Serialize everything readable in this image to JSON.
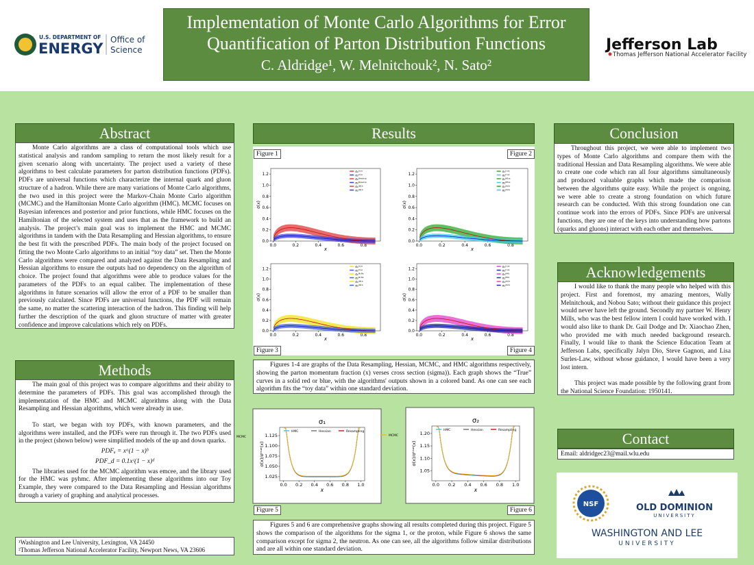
{
  "header": {
    "title": "Implementation of Monte Carlo Algorithms for Error Quantification of Parton Distribution Functions",
    "authors": "C. Aldridge¹, W. Melnitchouk², N. Sato²"
  },
  "logos": {
    "doe_line1": "U.S. DEPARTMENT OF",
    "doe_line2": "ENERGY",
    "office_line1": "Office of",
    "office_line2": "Science",
    "jlab": "Jefferson Lab",
    "jlab_sub": "Thomas Jefferson National Accelerator Facility"
  },
  "abstract": {
    "heading": "Abstract",
    "text": "Monte Carlo algorithms are a class of computational tools which use statistical analysis and random sampling to return the most likely result for a given scenario along with uncertainty. The project used a variety of these algorithms to best calculate parameters for parton distribution functions (PDFs). PDFs are universal functions which characterize the internal quark and gluon structure of a hadron. While there are many variations of Monte Carlo algorithms, the two used in this project were the Markov-Chain Monte Carlo algorithm (MCMC) and the Hamiltonian Monte Carlo algorithm (HMC). MCMC focuses on Bayesian inferences and posterior and prior functions, while HMC focuses on the Hamiltonian of the selected system and uses that as the framework to build an analysis. The project’s main goal was to implement the HMC and MCMC algorithms in tandem with the Data Resampling and Hessian algorithms, to ensure the best fit with the prescribed PDFs. The main body of the project focused on fitting the two Monte Carlo algorithms to an initial “toy data” set. Then the Monte Carlo algorithms were compared and analyzed against the Data Resampling and Hessian algorithms to ensure the outputs had no dependency on the algorithm of choice. The project found that algorithms were able to produce values for the parameters of the PDFs to an equal caliber. The implementation of these algorithms in future scenarios will allow the error of a PDF to be smaller than previously calculated. Since PDFs are universal functions, the PDF will remain the same, no matter the scattering interaction of the hadron. This finding will help further the description of the quark and gluon structure of matter with greater confidence and improve calculations which rely on PDFs."
  },
  "methods": {
    "heading": "Methods",
    "paragraph1": "The main goal of this project was to compare algorithms and their ability to determine the parameters of PDFs. This goal was accomplished through the implementation of the HMC and MCMC algorithms along with the Data Resampling and Hessian algorithms, which were already in use.",
    "paragraph2": "To start, we began with toy PDFs, with known parameters, and the algorithms were installed, and the PDFs were run through it. The two PDFs used in the project (shown below) were simplified models of the up and down quarks.",
    "equations": [
      "PDFᵤ = xᵃ(1 − x)ᵇ",
      "PDF_d = 0.1xᶜ(1 − x)ᵈ"
    ],
    "paragraph3": "The libraries used for the MCMC algorithm was emcee, and the library used for the HMC was pyhmc. After implementing these algorithms into our Toy Example, they were compared to the Data Resampling and Hessian algorithms through a variety of graphing and analytical processes."
  },
  "footnotes": [
    "¹Washington and Lee University, Lexington, VA 24450",
    "²Thomas Jefferson National Accelerator Facility, Newport News, VA 23606"
  ],
  "results": {
    "heading": "Results",
    "figure_labels": [
      "Figure 1",
      "Figure 2",
      "Figure 3",
      "Figure 4",
      "Figure 5",
      "Figure 6"
    ],
    "caption1": "Figures 1-4 are graphs of the  Data Resampling, Hessian, MCMC, and HMC algorithms respectively, showing the parton momentum fraction (x) verses cross section (sigma)). Each graph shows the “True” curves in a solid red or blue, with the algorithms' outputs shown in a colored band. As one can see each algorithm fits the “toy data” within one standard deviation.",
    "caption2": "Figures 5 and 6 are comprehensive graphs showing all results completed during this project. Figure 5 shows the comparison of the algorithms for the sigma 1, or the proton, while Figure 6 shows the same comparison except for sigma 2, the neutron. As one can see, all the algorithms follow similar distributions and are  all within one standard deviation.",
    "figures": [
      {
        "xlim": [
          -0.02,
          0.95
        ],
        "ylim": [
          0,
          1.3
        ],
        "xticks": [
          {
            "value": 0,
            "label": "0.0"
          },
          0.2,
          0.4,
          0.6,
          0.8
        ],
        "yticks": [
          {
            "value": 0,
            "label": "0.0"
          },
          0.2,
          0.4,
          0.6,
          0.8,
          {
            "value": 1,
            "label": "1.0"
          },
          1.2
        ],
        "xlabel": "x",
        "ylabel": "σ(x)",
        "legend": [
          "σ₁ᵗʳᵘᵉ",
          "σ₂ᵗʳᵘᵉ",
          "σ₁ᴿᵉˢᵃᵐᵖ",
          "σ₂ᴿᵉˢᵃᵐᵖ",
          "σ₁ᵈᵃᵗᵃ",
          "σ₂ᵈᵃᵗᵃ"
        ]
      },
      {
        "xlim": [
          -0.02,
          0.95
        ],
        "ylim": [
          0,
          1.3
        ],
        "xticks": [
          {
            "value": 0,
            "label": "0.0"
          },
          0.2,
          0.4,
          0.6,
          0.8
        ],
        "yticks": [
          {
            "value": 0,
            "label": "0.0"
          },
          0.2,
          0.4,
          0.6,
          0.8,
          {
            "value": 1,
            "label": "1.0"
          },
          1.2
        ],
        "xlabel": "x",
        "ylabel": "σ(x)",
        "legend": [
          "σ₁ᵗʳᵘᵉ",
          "σ₂ᵗʳᵘᵉ",
          "σ₁ᴴᴱˢˢ",
          "σ₂ᴴᴱˢˢ",
          "σ₁ᵈᵃᵗᵃ",
          "σ₂ᵈᵃᵗᵃ"
        ]
      },
      {
        "xlim": [
          -0.02,
          0.95
        ],
        "ylim": [
          0,
          1.3
        ],
        "xticks": [
          {
            "value": 0,
            "label": "0.0"
          },
          0.2,
          0.4,
          0.6,
          0.8
        ],
        "yticks": [
          {
            "value": 0,
            "label": "0.0"
          },
          0.2,
          0.4,
          0.6,
          0.8,
          {
            "value": 1,
            "label": "1.0"
          },
          1.2
        ],
        "xlabel": "x",
        "ylabel": "σ(x)",
        "legend": [
          "σ₁ᵗʳᵘᵉ",
          "σ₂ᵗʳᵘᵉ",
          "σ₁ᴹᶜᴹᶜ",
          "σ₂ᴹᶜᴹᶜ",
          "σ₁ᵈᵃᵗᵃ",
          "σ₂ᵈᵃᵗᵃ"
        ]
      },
      {
        "xlim": [
          -0.02,
          0.95
        ],
        "ylim": [
          0,
          1.3
        ],
        "xticks": [
          {
            "value": 0,
            "label": "0.0"
          },
          0.2,
          0.4,
          0.6,
          0.8
        ],
        "yticks": [
          {
            "value": 0,
            "label": "0.0"
          },
          0.2,
          0.4,
          0.6,
          0.8,
          {
            "value": 1,
            "label": "1.0"
          },
          1.2
        ],
        "xlabel": "x",
        "ylabel": "σ(x)",
        "legend": [
          "σ₁ᵗʳᵘᵉ",
          "σ₂ᵗʳᵘᵉ",
          "σ₁ᴴᴹᶜ",
          "σ₂ᴴᴹᶜ",
          "σ₁ᵈᵃᵗᵃ",
          "σ₂ᵈᵃᵗᵃ"
        ]
      },
      {
        "title": "σ₁",
        "xlim": [
          -0.05,
          1.05
        ],
        "ylim": [
          1.015,
          1.145
        ],
        "xticks": [
          {
            "value": 0,
            "label": "0.0"
          },
          0.2,
          0.4,
          0.6,
          0.8,
          {
            "value": 1,
            "label": "1.0"
          }
        ],
        "yticks": [
          1.025,
          {
            "value": 1.05,
            "label": "1.050"
          },
          1.075,
          {
            "value": 1.1,
            "label": "1.100"
          },
          1.125
        ],
        "xlabel": "x",
        "ylabel": "σ(x)/σᵗʳᵘᵉ(x)",
        "legend": [
          "HMC",
          "Hessian",
          "Resampling",
          "MCMC"
        ]
      },
      {
        "title": "σ₂",
        "xlim": [
          -0.05,
          1.05
        ],
        "ylim": [
          1.01,
          1.23
        ],
        "xticks": [
          {
            "value": 0,
            "label": "0.0"
          },
          0.2,
          0.4,
          0.6,
          0.8,
          {
            "value": 1,
            "label": "1.0"
          }
        ],
        "yticks": [
          1.05,
          {
            "value": 1.1,
            "label": "1.10"
          },
          1.15,
          {
            "value": 1.2,
            "label": "1.20"
          }
        ],
        "xlabel": "x",
        "ylabel": "σ(x)/σᵗʳᵘᵉ(x)",
        "legend": [
          "HMC",
          "Hessian",
          "Resampling",
          "MCMC"
        ]
      }
    ]
  },
  "conclusion": {
    "heading": "Conclusion",
    "text": "Throughout this project, we were able to implement two types of Monte Carlo algorithms and compare them with the traditional Hessian and Data Resampling algorithms. We were able to create one code which ran all four algorithms simultaneously and produced valuable graphs which made the comparison between the algorithms quite easy. While the project is ongoing, we were able to create a strong foundation on which future research can be conducted. With this strong foundation one can continue work into the errors of PDFs. Since PDFs are universal functions, they are one of the keys into understanding how partons (quarks and gluons) interact with each other and themselves."
  },
  "acknowledgements": {
    "heading": "Acknowledgements",
    "paragraph1": "I would like to thank the many people who helped with this project. First and foremost, my amazing mentors, Wally Melnitchouk, and Nobou Sato; without their guidance this project would never have left the ground. Secondly my partner W. Henry Mills, who was the best fellow intern I could have worked with. I would also like to thank Dr. Gail Dodge and Dr. Xiaochao Zhen, who provided me with much needed background research. Finally, I would like to thank the Science Education Team at Jefferson Labs, specifically Jalyn Dio, Steve Gagnon, and Lisa Surles-Law, without whose guidance, I would have been a very lost intern.",
    "paragraph2": "This project was made possible by  the following grant from the National Science Foundation: 1950141."
  },
  "contact": {
    "heading": "Contact",
    "email": "Email: aldridgec23@mail.wlu.edu"
  },
  "sponsors": {
    "nsf": "NSF",
    "odu_line1": "OLD DOMINION",
    "odu_line2": "UNIVERSITY",
    "wl_line1": "WASHINGTON AND LEE",
    "wl_line2": "UNIVERSITY"
  }
}
